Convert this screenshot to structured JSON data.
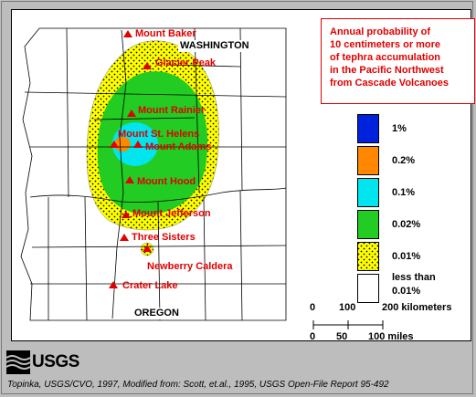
{
  "title_lines": [
    "Annual probability of",
    "10 centimeters or more",
    "of tephra accumulation",
    "in the Pacific Northwest",
    "from Cascade Volcanoes"
  ],
  "states": {
    "north": "WASHINGTON",
    "south": "OREGON"
  },
  "volcanoes": [
    {
      "id": "baker",
      "name": "Mount Baker"
    },
    {
      "id": "glacier",
      "name": "Glacier Peak"
    },
    {
      "id": "rainier",
      "name": "Mount Rainier"
    },
    {
      "id": "sthelens",
      "name": "Mount St. Helens"
    },
    {
      "id": "adams",
      "name": "Mount Adams"
    },
    {
      "id": "hood",
      "name": "Mount Hood"
    },
    {
      "id": "jefferson",
      "name": "Mount Jefferson"
    },
    {
      "id": "sisters",
      "name": "Three Sisters"
    },
    {
      "id": "newberry",
      "name": "Newberry Caldera"
    },
    {
      "id": "crater",
      "name": "Crater Lake"
    }
  ],
  "legend": [
    {
      "label": "1%",
      "color": "#0022dd"
    },
    {
      "label": "0.2%",
      "color": "#ff8800"
    },
    {
      "label": "0.1%",
      "color": "#00e5ee"
    },
    {
      "label": "0.02%",
      "color": "#22cc22"
    },
    {
      "label": "0.01%",
      "color": "#ffff00",
      "pattern": "dotted"
    },
    {
      "label_lines": [
        "less than",
        "0.01%"
      ],
      "color": "#ffffff"
    }
  ],
  "scale": {
    "km_ticks": [
      "0",
      "100",
      "200 kilometers"
    ],
    "mi_ticks": [
      "0",
      "50",
      "100 miles"
    ]
  },
  "colors": {
    "volcano_symbol": "#e00000",
    "zone_green": "#22cc22",
    "zone_cyan": "#00e5ee",
    "zone_yellow": "#ffff00",
    "zone_orange": "#ff8800",
    "zone_blue": "#0022dd"
  },
  "logo_text": "USGS",
  "credit": "Topinka, USGS/CVO, 1997, Modified from: Scott, et.al., 1995, USGS Open-File Report 95-492"
}
